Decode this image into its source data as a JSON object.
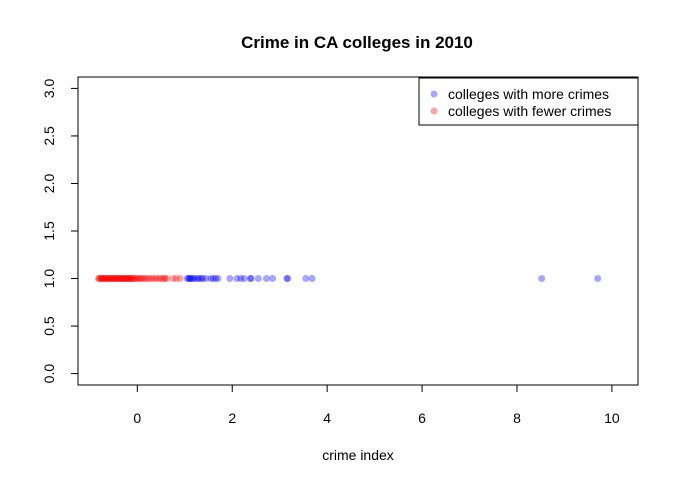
{
  "chart_data": {
    "type": "scatter",
    "title": "Crime in CA colleges in 2010",
    "xlabel": "crime index",
    "ylabel": "",
    "xlim": [
      -1.25,
      10.55
    ],
    "ylim": [
      -0.12,
      3.12
    ],
    "xticks": [
      0,
      2,
      4,
      6,
      8,
      10
    ],
    "yticks": [
      "0.0",
      "0.5",
      "1.0",
      "1.5",
      "2.0",
      "2.5",
      "3.0"
    ],
    "grid": false,
    "legend_position": "top-right",
    "series": [
      {
        "name": "colleges with more crimes",
        "color": "#0000ff",
        "alpha": 0.35,
        "x": [
          1.05,
          1.08,
          1.1,
          1.12,
          1.15,
          1.18,
          1.22,
          1.27,
          1.3,
          1.35,
          1.38,
          1.45,
          1.55,
          1.6,
          1.65,
          1.7,
          1.95,
          2.1,
          2.18,
          2.25,
          2.38,
          2.4,
          2.55,
          2.72,
          2.85,
          3.15,
          3.17,
          3.55,
          3.68,
          8.52,
          9.7
        ],
        "y": [
          1.0,
          1.0,
          1.0,
          1.0,
          1.0,
          1.0,
          1.0,
          1.0,
          1.0,
          1.0,
          1.0,
          1.0,
          1.0,
          1.0,
          1.0,
          1.0,
          1.0,
          1.0,
          1.0,
          1.0,
          1.0,
          1.0,
          1.0,
          1.0,
          1.0,
          1.0,
          1.0,
          1.0,
          1.0,
          1.0,
          1.0
        ]
      },
      {
        "name": "colleges with fewer crimes",
        "color": "#ff0000",
        "alpha": 0.35,
        "x": [
          -0.82,
          -0.8,
          -0.78,
          -0.76,
          -0.74,
          -0.72,
          -0.7,
          -0.68,
          -0.66,
          -0.64,
          -0.62,
          -0.6,
          -0.58,
          -0.56,
          -0.54,
          -0.52,
          -0.5,
          -0.48,
          -0.46,
          -0.44,
          -0.42,
          -0.4,
          -0.38,
          -0.36,
          -0.34,
          -0.32,
          -0.3,
          -0.28,
          -0.26,
          -0.24,
          -0.22,
          -0.2,
          -0.18,
          -0.16,
          -0.14,
          -0.12,
          -0.1,
          -0.08,
          -0.05,
          -0.02,
          0.02,
          0.05,
          0.08,
          0.12,
          0.16,
          0.2,
          0.25,
          0.3,
          0.35,
          0.4,
          0.45,
          0.5,
          0.55,
          0.58,
          0.62,
          0.75,
          0.82,
          0.9
        ],
        "y": [
          1.0,
          1.0,
          1.0,
          1.0,
          1.0,
          1.0,
          1.0,
          1.0,
          1.0,
          1.0,
          1.0,
          1.0,
          1.0,
          1.0,
          1.0,
          1.0,
          1.0,
          1.0,
          1.0,
          1.0,
          1.0,
          1.0,
          1.0,
          1.0,
          1.0,
          1.0,
          1.0,
          1.0,
          1.0,
          1.0,
          1.0,
          1.0,
          1.0,
          1.0,
          1.0,
          1.0,
          1.0,
          1.0,
          1.0,
          1.0,
          1.0,
          1.0,
          1.0,
          1.0,
          1.0,
          1.0,
          1.0,
          1.0,
          1.0,
          1.0,
          1.0,
          1.0,
          1.0,
          1.0,
          1.0,
          1.0,
          1.0,
          1.0
        ]
      }
    ]
  }
}
